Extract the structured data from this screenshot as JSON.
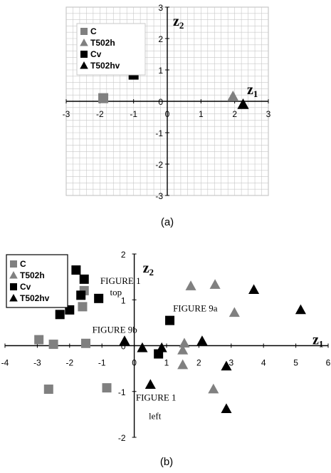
{
  "chart_data": [
    {
      "type": "scatter",
      "caption": "(a)",
      "xlabel": "z1",
      "ylabel": "z2",
      "xlim": [
        -3,
        3
      ],
      "ylim": [
        -3,
        3
      ],
      "xticks": [
        -3,
        -2,
        -1,
        0,
        1,
        2,
        3
      ],
      "yticks": [
        -3,
        -2,
        -1,
        0,
        1,
        2,
        3
      ],
      "grid": true,
      "legend_position": "top-left",
      "series": [
        {
          "name": "C",
          "marker": "square",
          "color": "#808080",
          "points": [
            [
              -1.9,
              0.1
            ]
          ]
        },
        {
          "name": "T502h",
          "marker": "triangle",
          "color": "#808080",
          "points": [
            [
              1.95,
              0.15
            ]
          ]
        },
        {
          "name": "Cv",
          "marker": "square",
          "color": "#000000",
          "points": [
            [
              -1.0,
              0.85
            ]
          ]
        },
        {
          "name": "T502hv",
          "marker": "triangle",
          "color": "#000000",
          "points": [
            [
              2.25,
              -0.1
            ]
          ]
        }
      ],
      "annotations": []
    },
    {
      "type": "scatter",
      "caption": "(b)",
      "xlabel": "z1",
      "ylabel": "z2",
      "xlim": [
        -4,
        6
      ],
      "ylim": [
        -2,
        2
      ],
      "xticks": [
        -4,
        -3,
        -2,
        -1,
        0,
        1,
        2,
        3,
        4,
        5,
        6
      ],
      "yticks": [
        -2,
        -1,
        0,
        1,
        2
      ],
      "grid": false,
      "legend_position": "top-left",
      "series": [
        {
          "name": "C",
          "marker": "square",
          "color": "#808080",
          "points": [
            [
              -2.95,
              0.13
            ],
            [
              -2.5,
              0.03
            ],
            [
              -1.5,
              0.05
            ],
            [
              -1.55,
              1.2
            ],
            [
              -1.6,
              0.85
            ],
            [
              -2.65,
              -0.95
            ],
            [
              -0.85,
              -0.92
            ]
          ]
        },
        {
          "name": "T502h",
          "marker": "triangle",
          "color": "#808080",
          "points": [
            [
              1.75,
              1.3
            ],
            [
              2.5,
              1.33
            ],
            [
              3.1,
              0.72
            ],
            [
              1.55,
              0.05
            ],
            [
              1.5,
              -0.1
            ],
            [
              1.5,
              -0.42
            ],
            [
              2.45,
              -0.95
            ]
          ]
        },
        {
          "name": "Cv",
          "marker": "square",
          "color": "#000000",
          "points": [
            [
              -1.8,
              1.65
            ],
            [
              -1.55,
              1.45
            ],
            [
              -1.65,
              1.1
            ],
            [
              -2.0,
              0.78
            ],
            [
              -2.3,
              0.68
            ],
            [
              -1.1,
              1.03
            ],
            [
              1.1,
              0.55
            ],
            [
              0.75,
              -0.18
            ]
          ]
        },
        {
          "name": "T502hv",
          "marker": "triangle",
          "color": "#000000",
          "points": [
            [
              3.7,
              1.22
            ],
            [
              5.15,
              0.78
            ],
            [
              2.1,
              0.1
            ],
            [
              2.85,
              -0.45
            ],
            [
              0.25,
              -0.05
            ],
            [
              0.85,
              -0.05
            ],
            [
              0.5,
              -0.85
            ],
            [
              2.85,
              -1.38
            ],
            [
              -0.3,
              0.1
            ]
          ]
        }
      ],
      "annotations": [
        {
          "text": "FIGURE 1",
          "x": -1.05,
          "y": 1.35
        },
        {
          "text": "top",
          "x": -0.75,
          "y": 1.1
        },
        {
          "text": "FIGURE 9a",
          "x": 1.2,
          "y": 0.75
        },
        {
          "text": "FIGURE 9b",
          "x": -1.3,
          "y": 0.28
        },
        {
          "text": "FIGURE 1",
          "x": 0.05,
          "y": -1.2
        },
        {
          "text": "left",
          "x": 0.45,
          "y": -1.6
        }
      ]
    }
  ]
}
